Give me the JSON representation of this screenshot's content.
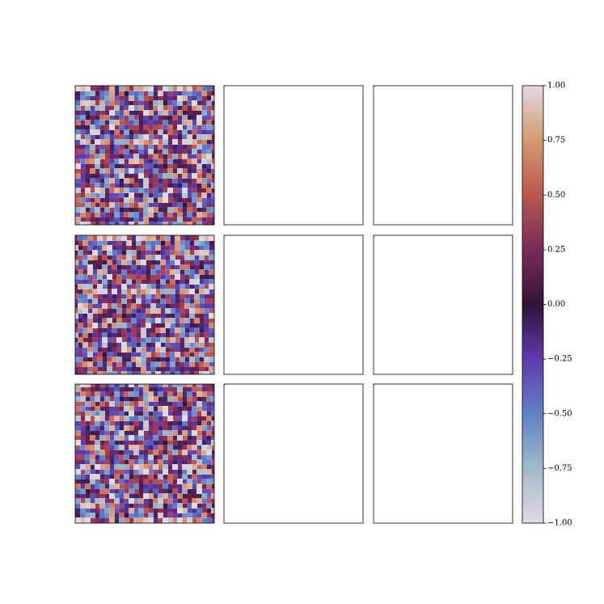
{
  "chart_data": {
    "type": "colorbar",
    "ylim": [
      -1,
      1
    ],
    "yticks": [
      {
        "value": -1,
        "label": "−1.00"
      },
      {
        "value": -0.75,
        "label": "−0.75"
      },
      {
        "value": -0.5,
        "label": "−0.50"
      },
      {
        "value": -0.25,
        "label": "−0.25"
      },
      {
        "value": 0,
        "label": "0.00"
      },
      {
        "value": 0.25,
        "label": "0.25"
      },
      {
        "value": 0.5,
        "label": "0.50"
      },
      {
        "value": 0.75,
        "label": "0.75"
      },
      {
        "value": 1,
        "label": "1.00"
      }
    ]
  }
}
